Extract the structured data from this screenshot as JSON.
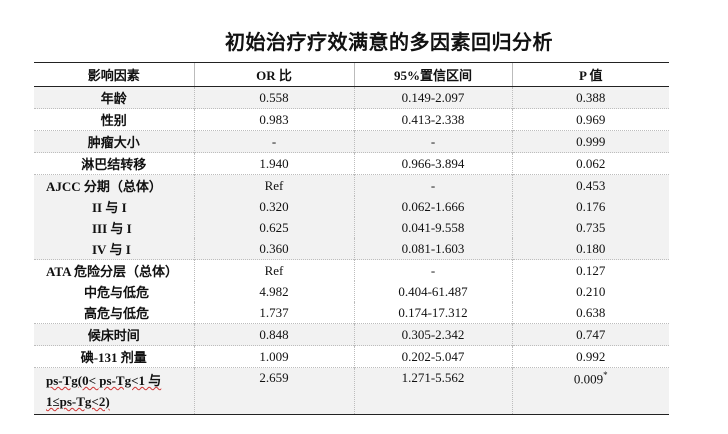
{
  "title": "初始治疗疗效满意的多因素回归分析",
  "headers": [
    "影响因素",
    "OR 比",
    "95%置信区间",
    "P 值"
  ],
  "rows": [
    {
      "factor": "年龄",
      "or": "0.558",
      "ci": "0.149-2.097",
      "p": "0.388"
    },
    {
      "factor": "性别",
      "or": "0.983",
      "ci": "0.413-2.338",
      "p": "0.969"
    },
    {
      "factor": "肿瘤大小",
      "or": "-",
      "ci": "-",
      "p": "0.999"
    },
    {
      "factor": "淋巴结转移",
      "or": "1.940",
      "ci": "0.966-3.894",
      "p": "0.062"
    },
    {
      "factor": "AJCC 分期（总体）",
      "or": "Ref",
      "ci": "-",
      "p": "0.453"
    },
    {
      "factor": "II 与 I",
      "or": "0.320",
      "ci": "0.062-1.666",
      "p": "0.176"
    },
    {
      "factor": "III 与 I",
      "or": "0.625",
      "ci": "0.041-9.558",
      "p": "0.735"
    },
    {
      "factor": "IV 与 I",
      "or": "0.360",
      "ci": "0.081-1.603",
      "p": "0.180"
    },
    {
      "factor": "ATA 危险分层（总体）",
      "or": "Ref",
      "ci": "-",
      "p": "0.127"
    },
    {
      "factor": "中危与低危",
      "or": "4.982",
      "ci": "0.404-61.487",
      "p": "0.210"
    },
    {
      "factor": "高危与低危",
      "or": "1.737",
      "ci": "0.174-17.312",
      "p": "0.638"
    },
    {
      "factor": "候床时间",
      "or": "0.848",
      "ci": "0.305-2.342",
      "p": "0.747"
    },
    {
      "factor": "碘-131 剂量",
      "or": "1.009",
      "ci": "0.202-5.047",
      "p": "0.992"
    },
    {
      "factor_line1": "ps-Tg(0< ps-Tg<1 与",
      "factor_line2": "1≤ps-Tg<2)",
      "or": "2.659",
      "ci": "1.271-5.562",
      "p": "0.009",
      "p_mark": "*"
    }
  ]
}
